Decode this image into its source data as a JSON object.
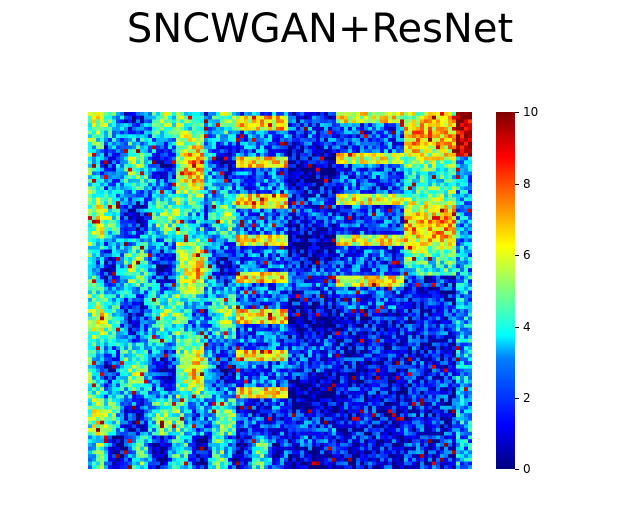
{
  "chart_data": {
    "type": "heatmap",
    "title": "SNCWGAN+ResNet",
    "colormap": "jet",
    "value_range": [
      0,
      10
    ],
    "grid_size": [
      96,
      96
    ],
    "colorbar": {
      "ticks": [
        "0",
        "2",
        "4",
        "6",
        "8",
        "10"
      ],
      "tick_values": [
        0,
        2,
        4,
        6,
        8,
        10
      ]
    }
  }
}
